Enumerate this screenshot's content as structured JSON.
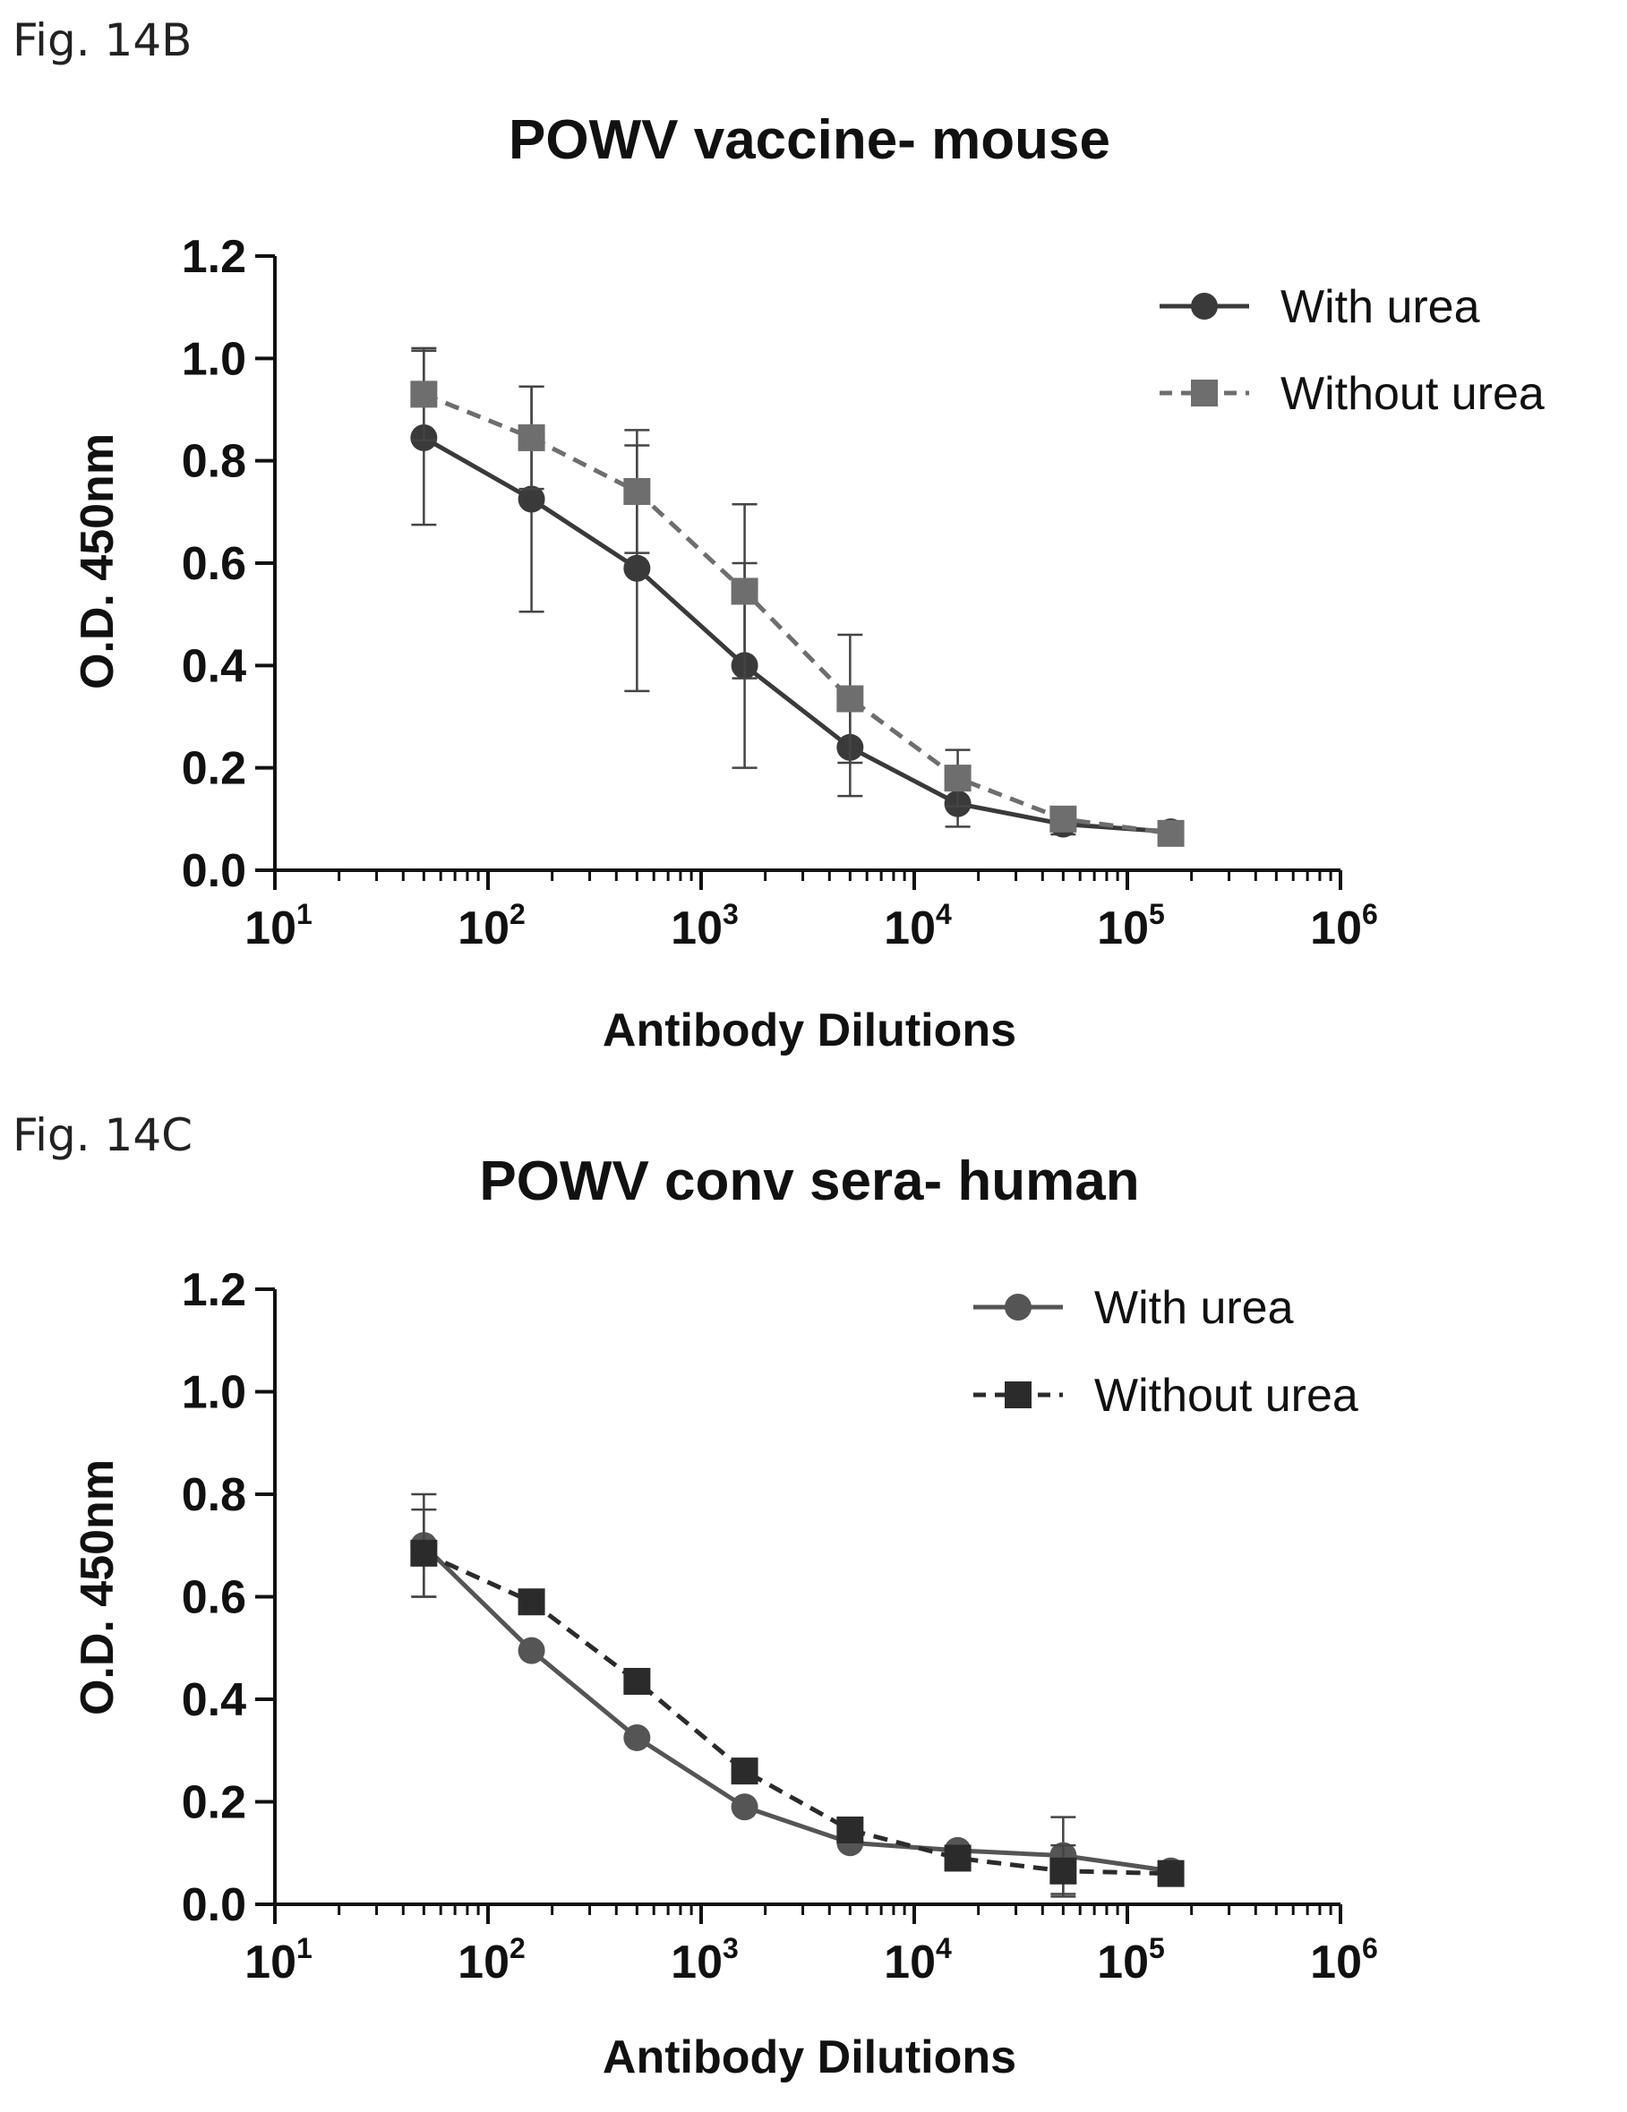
{
  "chart_data": [
    {
      "figure_label": "Fig. 14B",
      "type": "line",
      "title": "POWV vaccine- mouse",
      "xlabel": "Antibody Dilutions",
      "ylabel": "O.D. 450nm",
      "x_scale": "log",
      "xlim": [
        10,
        1000000
      ],
      "ylim": [
        0,
        1.2
      ],
      "yticks": [
        "0.0",
        "0.2",
        "0.4",
        "0.6",
        "0.8",
        "1.0",
        "1.2"
      ],
      "xticks": [
        {
          "base": "10",
          "exp": "1"
        },
        {
          "base": "10",
          "exp": "2"
        },
        {
          "base": "10",
          "exp": "3"
        },
        {
          "base": "10",
          "exp": "4"
        },
        {
          "base": "10",
          "exp": "5"
        },
        {
          "base": "10",
          "exp": "6"
        }
      ],
      "legend_position": "top-right",
      "x": [
        50,
        160,
        500,
        1600,
        5000,
        16000,
        50000,
        160000
      ],
      "series": [
        {
          "name": "With urea",
          "marker": "circle",
          "line": "solid",
          "color": "#3a3a3a",
          "values": [
            0.845,
            0.725,
            0.59,
            0.4,
            0.24,
            0.13,
            0.09,
            0.075
          ],
          "error": [
            0.17,
            0.22,
            0.24,
            0.2,
            0.095,
            0.045,
            0.02,
            0.01
          ]
        },
        {
          "name": "Without urea",
          "marker": "square",
          "line": "dashed",
          "color": "#6e6e6e",
          "values": [
            0.93,
            0.845,
            0.74,
            0.545,
            0.335,
            0.18,
            0.1,
            0.072
          ],
          "error": [
            0.09,
            0.1,
            0.12,
            0.17,
            0.125,
            0.055,
            0.02,
            0.01
          ]
        }
      ]
    },
    {
      "figure_label": "Fig. 14C",
      "type": "line",
      "title": "POWV conv sera- human",
      "xlabel": "Antibody Dilutions",
      "ylabel": "O.D. 450nm",
      "x_scale": "log",
      "xlim": [
        10,
        1000000
      ],
      "ylim": [
        0,
        1.2
      ],
      "yticks": [
        "0.0",
        "0.2",
        "0.4",
        "0.6",
        "0.8",
        "1.0",
        "1.2"
      ],
      "xticks": [
        {
          "base": "10",
          "exp": "1"
        },
        {
          "base": "10",
          "exp": "2"
        },
        {
          "base": "10",
          "exp": "3"
        },
        {
          "base": "10",
          "exp": "4"
        },
        {
          "base": "10",
          "exp": "5"
        },
        {
          "base": "10",
          "exp": "6"
        }
      ],
      "legend_position": "top-right",
      "x": [
        50,
        160,
        500,
        1600,
        5000,
        16000,
        50000,
        160000
      ],
      "series": [
        {
          "name": "With urea",
          "marker": "circle",
          "line": "solid",
          "color": "#555555",
          "values": [
            0.7,
            0.495,
            0.325,
            0.19,
            0.12,
            0.105,
            0.095,
            0.065
          ],
          "error": [
            0.1,
            0,
            0,
            0,
            0,
            0,
            0.075,
            0
          ]
        },
        {
          "name": "Without urea",
          "marker": "square",
          "line": "dashed",
          "color": "#2b2b2b",
          "values": [
            0.685,
            0.59,
            0.435,
            0.26,
            0.145,
            0.09,
            0.065,
            0.06
          ],
          "error": [
            0.085,
            0,
            0,
            0,
            0,
            0,
            0.05,
            0
          ]
        }
      ]
    }
  ]
}
